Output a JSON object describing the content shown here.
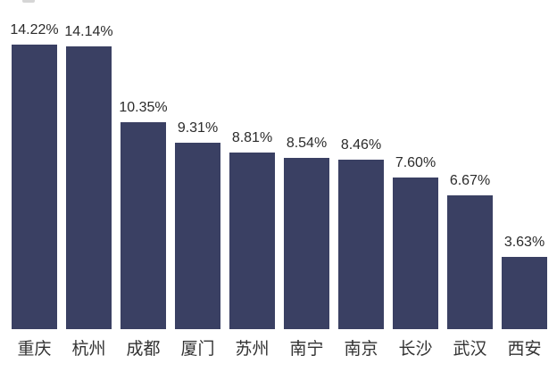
{
  "chart_data": {
    "type": "bar",
    "categories": [
      "重庆",
      "杭州",
      "成都",
      "厦门",
      "苏州",
      "南宁",
      "南京",
      "长沙",
      "武汉",
      "西安"
    ],
    "values": [
      14.22,
      14.14,
      10.35,
      9.31,
      8.81,
      8.54,
      8.46,
      7.6,
      6.67,
      3.63
    ],
    "value_labels": [
      "14.22%",
      "14.14%",
      "10.35%",
      "9.31%",
      "8.81%",
      "8.54%",
      "8.46%",
      "7.60%",
      "6.67%",
      "3.63%"
    ],
    "title": "",
    "xlabel": "",
    "ylabel": "",
    "ylim": [
      0,
      16.4
    ],
    "grid": false,
    "legend": false,
    "bar_color": "#3A4063",
    "value_label_color": "#2B2B2B",
    "category_label_color": "#333333",
    "background_color": "#FFFFFF"
  },
  "artifacts": {
    "top_left_cropped_fragment_color": "#CFCFCF"
  }
}
